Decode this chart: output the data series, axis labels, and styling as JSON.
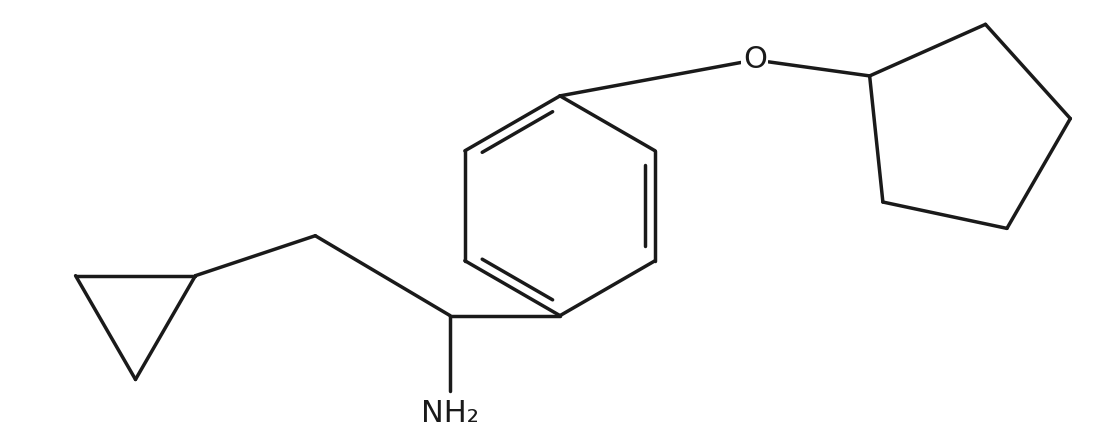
{
  "background_color": "#ffffff",
  "line_color": "#1a1a1a",
  "lw": 2.5,
  "figsize": [
    11.04,
    4.36
  ],
  "dpi": 100,
  "NH2_label": "NH₂",
  "O_label": "O",
  "font_size": 22,
  "font_family": "DejaVu Sans"
}
